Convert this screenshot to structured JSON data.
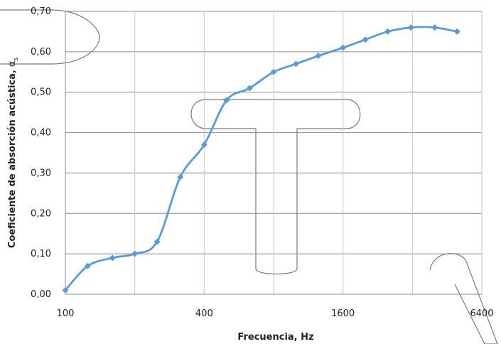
{
  "chart_data": {
    "type": "line",
    "xlabel": "Frecuencia,  Hz",
    "ylabel": "Coeficiente de absorción  acústica,",
    "ylabel_symbol": "α",
    "ylabel_subscript": "s",
    "x_scale": "log2",
    "xlim": [
      100,
      6400
    ],
    "ylim": [
      0,
      0.7
    ],
    "x_ticks": [
      100,
      400,
      1600,
      6400
    ],
    "x_tick_labels": [
      "100",
      "400",
      "1600",
      "6400"
    ],
    "y_ticks": [
      0,
      0.1,
      0.2,
      0.3,
      0.4,
      0.5,
      0.6,
      0.7
    ],
    "y_tick_labels": [
      "0,00",
      "0,10",
      "0,20",
      "0,30",
      "0,40",
      "0,50",
      "0,60",
      "0,70"
    ],
    "grid": true,
    "series": [
      {
        "color": "#5b9bd5",
        "marker": "diamond",
        "x": [
          100,
          125,
          160,
          200,
          250,
          315,
          400,
          500,
          630,
          800,
          1000,
          1250,
          1600,
          2000,
          2500,
          3150,
          4000,
          5000
        ],
        "y": [
          0.01,
          0.07,
          0.09,
          0.1,
          0.13,
          0.29,
          0.37,
          0.48,
          0.51,
          0.55,
          0.57,
          0.59,
          0.61,
          0.63,
          0.65,
          0.66,
          0.66,
          0.65
        ]
      }
    ]
  }
}
